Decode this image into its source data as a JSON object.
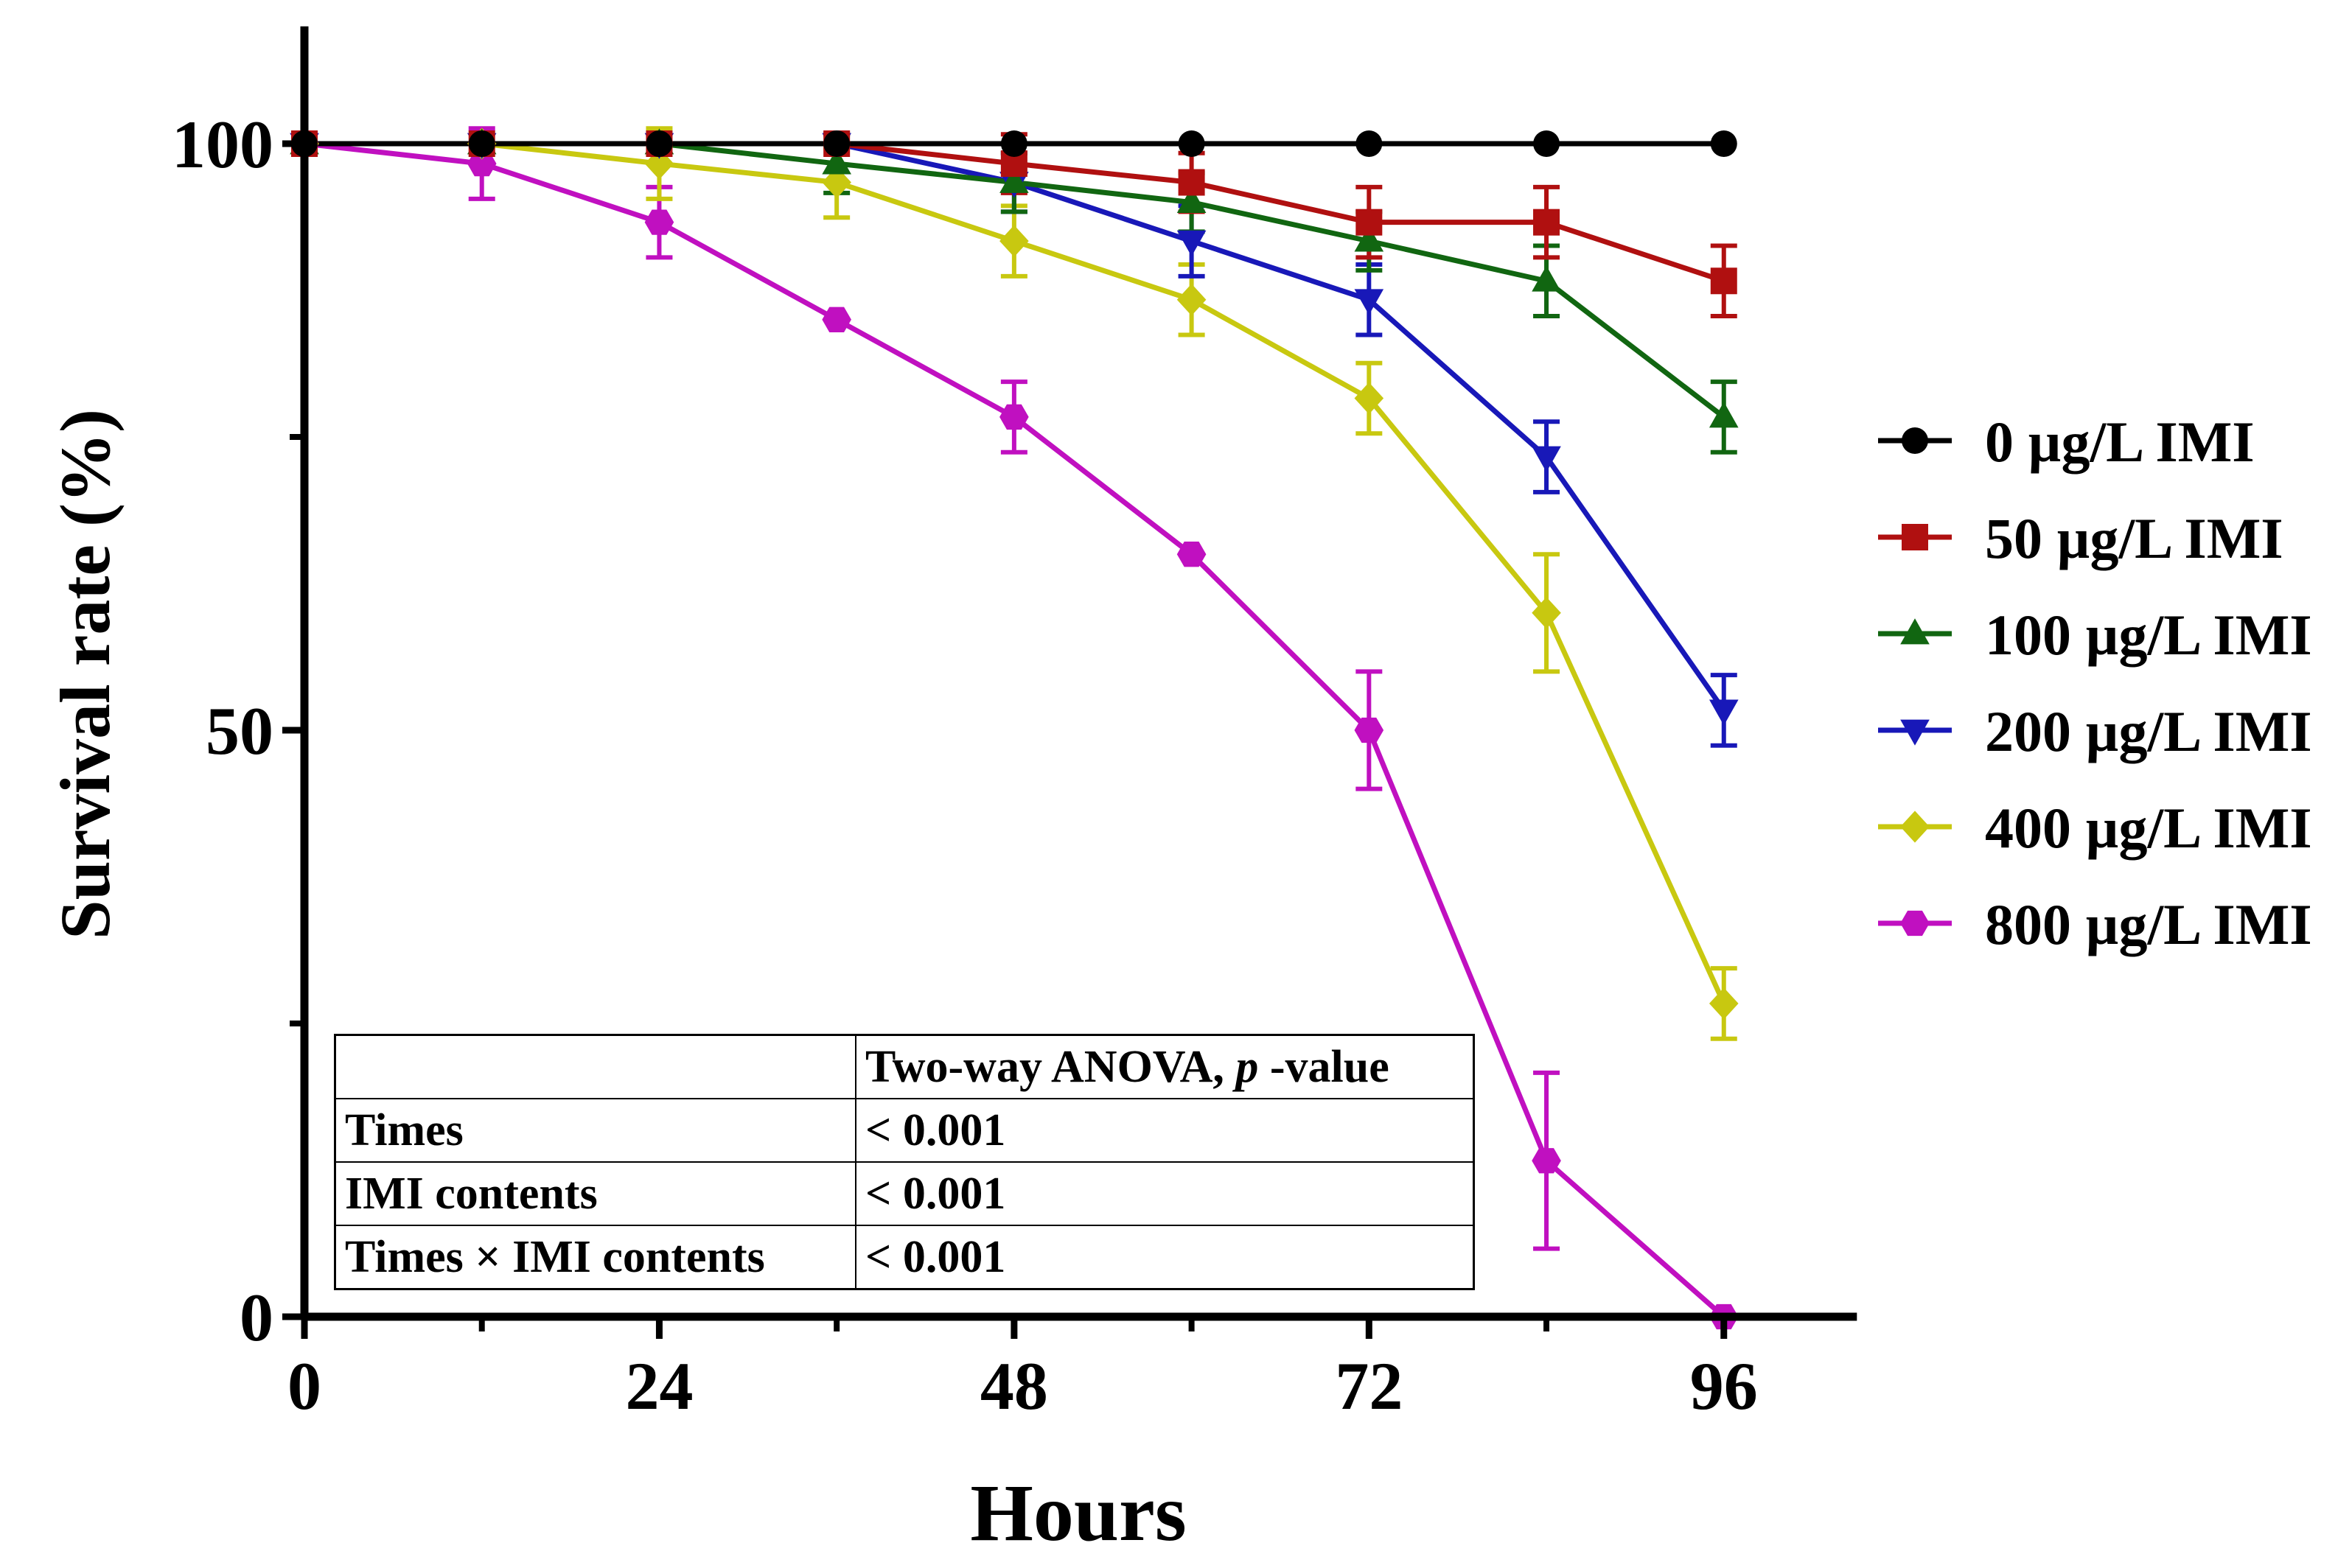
{
  "chart_data": {
    "type": "line",
    "title": "",
    "xlabel": "Hours",
    "ylabel": "Survival rate (%)",
    "xlim": [
      0,
      105
    ],
    "ylim": [
      0,
      110
    ],
    "x_ticks": [
      0,
      24,
      48,
      72,
      96
    ],
    "x_minor_ticks": [
      12,
      36,
      60,
      84
    ],
    "y_ticks": [
      0,
      50,
      100
    ],
    "y_minor_ticks": [
      25,
      75
    ],
    "x_tick_labels": [
      "0",
      "24",
      "48",
      "72",
      "96"
    ],
    "y_tick_labels": [
      "0",
      "50",
      "100"
    ],
    "x": [
      0,
      12,
      24,
      36,
      48,
      60,
      72,
      84,
      96
    ],
    "legend_position": "right",
    "series": [
      {
        "name": "0 µg/L IMI",
        "color": "#000000",
        "marker": "circle",
        "values": [
          100,
          100,
          100,
          100,
          100,
          100,
          100,
          100,
          100
        ],
        "errors": [
          0,
          0,
          0,
          0,
          0,
          0,
          0,
          0,
          0
        ]
      },
      {
        "name": "50 µg/L IMI",
        "color": "#b01010",
        "marker": "square",
        "values": [
          100,
          100,
          100,
          100,
          98.3,
          96.7,
          93.3,
          93.3,
          88.3
        ],
        "errors": [
          0,
          0,
          0,
          0,
          2.5,
          2.5,
          3,
          3,
          3
        ]
      },
      {
        "name": "100 µg/L IMI",
        "color": "#116611",
        "marker": "triangle-up",
        "values": [
          100,
          100,
          100,
          98.3,
          96.7,
          95,
          91.7,
          88.3,
          76.7
        ],
        "errors": [
          0,
          0,
          0,
          2.5,
          2.5,
          2.5,
          2.5,
          3,
          3
        ]
      },
      {
        "name": "200 µg/L IMI",
        "color": "#1818b8",
        "marker": "triangle-down",
        "values": [
          100,
          100,
          100,
          100,
          96.7,
          91.7,
          86.7,
          73.3,
          51.7
        ],
        "errors": [
          0,
          0,
          0,
          0,
          2.5,
          3,
          3,
          3,
          3
        ]
      },
      {
        "name": "400 µg/L IMI",
        "color": "#c8c810",
        "marker": "diamond",
        "values": [
          100,
          100,
          98.3,
          96.7,
          91.7,
          86.7,
          78.3,
          60,
          26.7
        ],
        "errors": [
          0,
          0,
          3,
          3,
          3,
          3,
          3,
          5,
          3
        ]
      },
      {
        "name": "800 µg/L IMI",
        "color": "#c010c0",
        "marker": "hexagon",
        "values": [
          100,
          98.3,
          93.3,
          85,
          76.7,
          65,
          50,
          13.3,
          0
        ],
        "errors": [
          0,
          3,
          3,
          0,
          3,
          0,
          5,
          7.5,
          0
        ]
      }
    ]
  },
  "anova_table": {
    "header_label": "Two-way ANOVA, ",
    "header_italic": "p",
    "header_suffix": " -value",
    "rows": [
      {
        "factor": "Times",
        "value": "< 0.001"
      },
      {
        "factor": "IMI contents",
        "value": "< 0.001"
      },
      {
        "factor": "Times × IMI contents",
        "value": "< 0.001"
      }
    ]
  }
}
